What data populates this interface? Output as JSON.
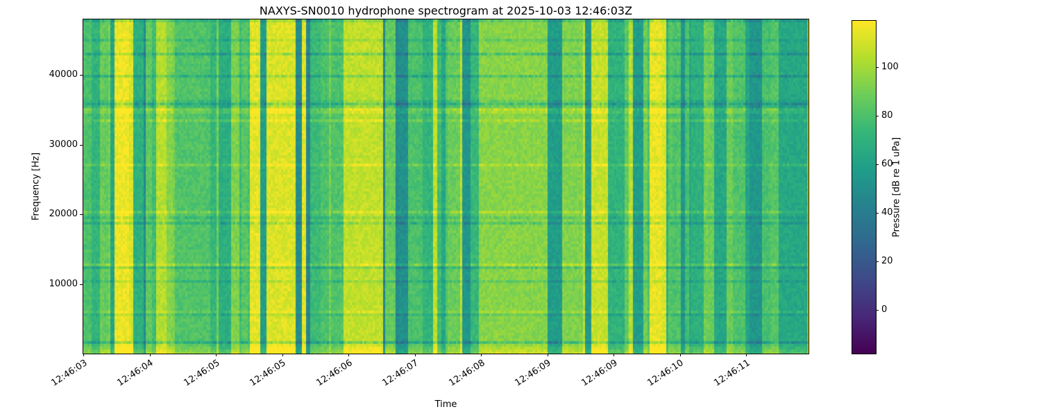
{
  "chart_data": {
    "type": "heatmap",
    "subtype": "spectrogram",
    "title": "NAXYS-SN0010 hydrophone spectrogram at 2025-10-03 12:46:03Z",
    "xlabel": "Time",
    "ylabel": "Frequency [Hz]",
    "x_tick_labels": [
      "12:46:03",
      "12:46:04",
      "12:46:05",
      "12:46:05",
      "12:46:06",
      "12:46:07",
      "12:46:08",
      "12:46:09",
      "12:46:09",
      "12:46:10",
      "12:46:11"
    ],
    "y_tick_labels": [
      "10000",
      "20000",
      "30000",
      "40000"
    ],
    "y_ticks": [
      10000,
      20000,
      30000,
      40000
    ],
    "y_range": [
      0,
      48000
    ],
    "colormap": "viridis",
    "colormap_stops": [
      [
        68,
        1,
        84
      ],
      [
        72,
        40,
        120
      ],
      [
        62,
        74,
        137
      ],
      [
        49,
        104,
        142
      ],
      [
        38,
        130,
        142
      ],
      [
        31,
        158,
        137
      ],
      [
        53,
        183,
        121
      ],
      [
        109,
        205,
        89
      ],
      [
        180,
        222,
        44
      ],
      [
        253,
        231,
        37
      ]
    ],
    "colorbar": {
      "label": "Pressure [dB re 1 uPa]",
      "tick_labels": [
        "0",
        "20",
        "40",
        "60",
        "80",
        "100"
      ],
      "ticks": [
        0,
        20,
        40,
        60,
        80,
        100
      ],
      "vmin": -18,
      "vmax": 119
    },
    "pattern": {
      "structure": "vertical-banded broadband noise with intermittent loud (yellow ~105-118 dB) and quiet (teal ~44-58 dB) bursts over a ~62-96 dB background, brighter band at lowest frequencies",
      "seed": 42,
      "base_range": [
        44,
        118
      ]
    },
    "legend_position": "right-colorbar",
    "grid": false
  }
}
